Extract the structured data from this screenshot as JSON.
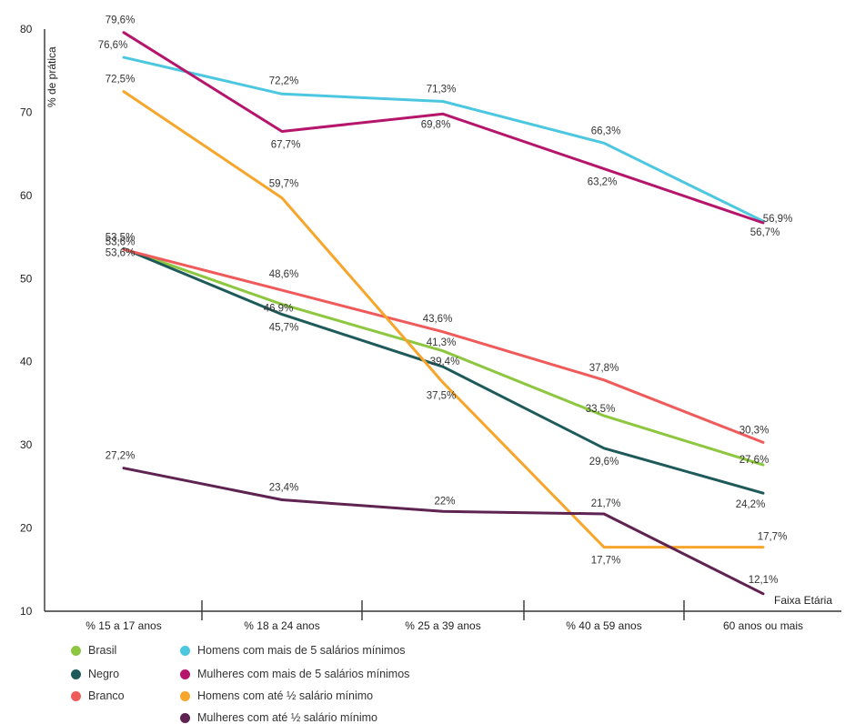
{
  "chart_data": {
    "type": "line",
    "ylabel": "% de prática",
    "xlabel": "Faixa Etária",
    "ylim": [
      10,
      80
    ],
    "yticks": [
      "80",
      "70",
      "60",
      "50",
      "40",
      "30",
      "20",
      "10"
    ],
    "categories": [
      "% 15 a 17 anos",
      "% 18 a 24 anos",
      "% 25 a 39 anos",
      "% 40 a 59 anos",
      "60 anos ou mais"
    ],
    "grid": false,
    "legend_placement": "bottom",
    "series": [
      {
        "name": "Brasil",
        "color": "#8dc63f",
        "values": [
          53.6,
          46.9,
          41.3,
          33.5,
          27.6
        ],
        "labels": [
          "53,6%",
          "46,9%",
          "41,3%",
          "33,5%",
          "27,6%"
        ]
      },
      {
        "name": "Negro",
        "color": "#1e5a5a",
        "values": [
          53.6,
          45.7,
          39.4,
          29.6,
          24.2
        ],
        "labels": [
          "53,6%",
          "45,7%",
          "39,4%",
          "29,6%",
          "24,2%"
        ]
      },
      {
        "name": "Branco",
        "color": "#ef5b5b",
        "values": [
          53.5,
          48.6,
          43.6,
          37.8,
          30.3
        ],
        "labels": [
          "53,5%",
          "48,6%",
          "43,6%",
          "37,8%",
          "30,3%"
        ]
      },
      {
        "name": "Homens com mais de 5 salários mínimos",
        "color": "#4cc7e0",
        "values": [
          76.6,
          72.2,
          71.3,
          66.3,
          56.9
        ],
        "labels": [
          "76,6%",
          "72,2%",
          "71,3%",
          "66,3%",
          "56,9%"
        ]
      },
      {
        "name": "Mulheres com mais de 5 salários mínimos",
        "color": "#b5166b",
        "values": [
          79.6,
          67.7,
          69.8,
          63.2,
          56.7
        ],
        "labels": [
          "79,6%",
          "67,7%",
          "69,8%",
          "63,2%",
          "56,7%"
        ]
      },
      {
        "name": "Homens com até ½ salário mínimo",
        "color": "#f7a52b",
        "values": [
          72.5,
          59.7,
          37.5,
          17.7,
          17.7
        ],
        "labels": [
          "72,5%",
          "59,7%",
          "37,5%",
          "17,7%",
          "17,7%"
        ]
      },
      {
        "name": "Mulheres com até ½ salário mínimo",
        "color": "#5e2350",
        "values": [
          27.2,
          23.4,
          22.0,
          21.7,
          12.1
        ],
        "labels": [
          "27,2%",
          "23,4%",
          "22%",
          "21,7%",
          "12,1%"
        ]
      }
    ]
  }
}
